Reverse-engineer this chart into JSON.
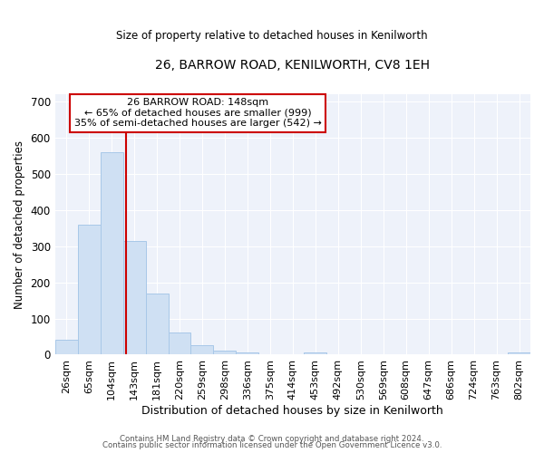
{
  "title": "26, BARROW ROAD, KENILWORTH, CV8 1EH",
  "subtitle": "Size of property relative to detached houses in Kenilworth",
  "xlabel": "Distribution of detached houses by size in Kenilworth",
  "ylabel": "Number of detached properties",
  "bar_color": "#cfe0f3",
  "bar_edge_color": "#a8c8e8",
  "bar_categories": [
    "26sqm",
    "65sqm",
    "104sqm",
    "143sqm",
    "181sqm",
    "220sqm",
    "259sqm",
    "298sqm",
    "336sqm",
    "375sqm",
    "414sqm",
    "453sqm",
    "492sqm",
    "530sqm",
    "569sqm",
    "608sqm",
    "647sqm",
    "686sqm",
    "724sqm",
    "763sqm",
    "802sqm"
  ],
  "bar_values": [
    42,
    358,
    560,
    315,
    168,
    62,
    25,
    12,
    7,
    0,
    0,
    5,
    0,
    0,
    0,
    0,
    0,
    0,
    0,
    0,
    5
  ],
  "ylim": [
    0,
    720
  ],
  "yticks": [
    0,
    100,
    200,
    300,
    400,
    500,
    600,
    700
  ],
  "annotation_line1": "26 BARROW ROAD: 148sqm",
  "annotation_line2": "← 65% of detached houses are smaller (999)",
  "annotation_line3": "35% of semi-detached houses are larger (542) →",
  "annotation_box_color": "#ffffff",
  "annotation_box_edge_color": "#cc0000",
  "red_line_color": "#cc0000",
  "background_color": "#eef2fa",
  "grid_color": "#ffffff",
  "footer1": "Contains HM Land Registry data © Crown copyright and database right 2024.",
  "footer2": "Contains public sector information licensed under the Open Government Licence v3.0."
}
